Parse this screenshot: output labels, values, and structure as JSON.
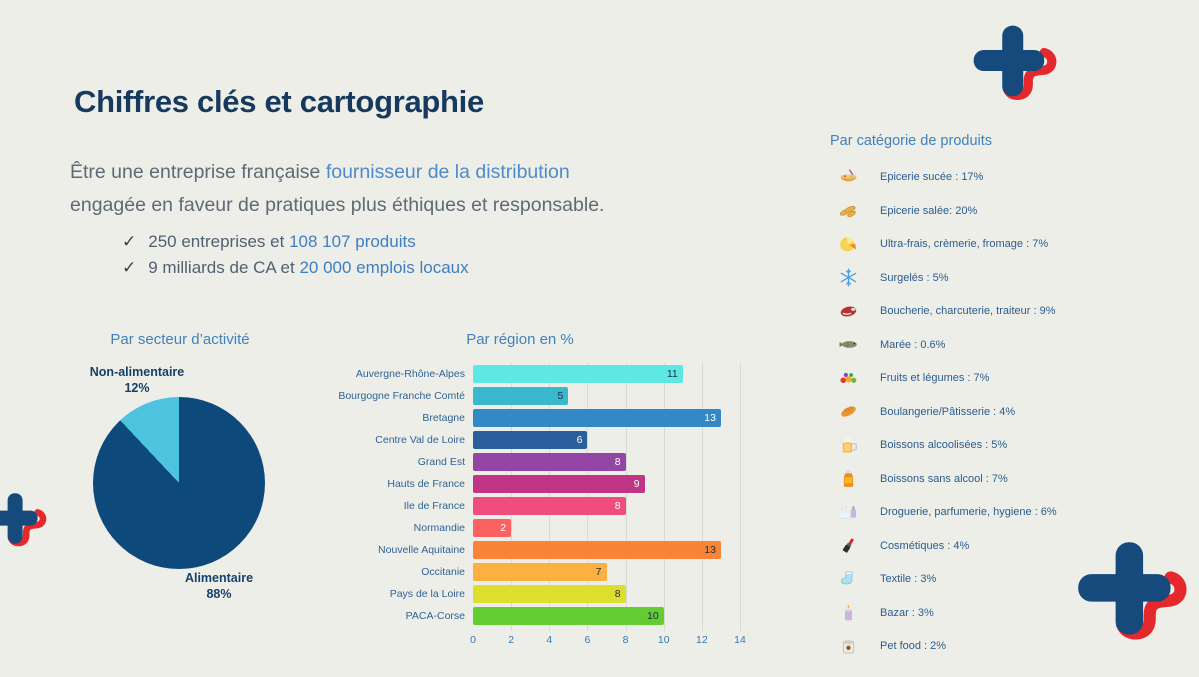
{
  "slide": {
    "title": "Chiffres clés et cartographie",
    "intro": {
      "line1_plain": "Être une entreprise française ",
      "line1_highlight": "fournisseur de la distribution",
      "line2": "engagée en faveur de pratiques plus éthiques et responsable."
    },
    "checkmark": "✓",
    "bullets": [
      {
        "plain": "250 entreprises et ",
        "highlight": "108 107 produits"
      },
      {
        "plain": "9 milliards de CA et ",
        "highlight": "20 000 emplois locaux"
      }
    ]
  },
  "colors": {
    "background": "#edeee8",
    "title_navy": "#16395e",
    "body_gray": "#5e6a74",
    "accent_blue": "#4e8bcc",
    "chart_title_blue": "#4181bd",
    "label_blue": "#2f6396",
    "pie_navy": "#0d4a7b",
    "pie_cyan": "#4ec3e0",
    "logo_navy": "#164a7d",
    "logo_red": "#e5282b",
    "gridline": "#d8d9d2"
  },
  "chart_data": [
    {
      "type": "pie",
      "title": "Par secteur d’activité",
      "slices": [
        {
          "label": "Non-alimentaire",
          "value": 12,
          "pct_label": "12%",
          "color": "#4ec3e0"
        },
        {
          "label": "Alimentaire",
          "value": 88,
          "pct_label": "88%",
          "color": "#0d4a7b"
        }
      ]
    },
    {
      "type": "bar",
      "orientation": "horizontal",
      "title": "Par région en %",
      "xlim": [
        0,
        14
      ],
      "ticks": [
        0,
        2,
        4,
        6,
        8,
        10,
        12,
        14
      ],
      "grid": true,
      "rows": [
        {
          "label": "Auvergne-Rhône-Alpes",
          "value": 11,
          "color": "#5ee8e3",
          "value_color": "dark"
        },
        {
          "label": "Bourgogne Franche Comté",
          "value": 5,
          "color": "#38b9d0",
          "value_color": "dark"
        },
        {
          "label": "Bretagne",
          "value": 13,
          "color": "#3389c5",
          "value_color": "light"
        },
        {
          "label": "Centre Val de Loire",
          "value": 6,
          "color": "#2a5f9e",
          "value_color": "light"
        },
        {
          "label": "Grand Est",
          "value": 8,
          "color": "#9346a3",
          "value_color": "light"
        },
        {
          "label": "Hauts de France",
          "value": 9,
          "color": "#c13585",
          "value_color": "light"
        },
        {
          "label": "Ile de France",
          "value": 8,
          "color": "#f04d7e",
          "value_color": "light"
        },
        {
          "label": "Normandie",
          "value": 2,
          "color": "#fc6161",
          "value_color": "light"
        },
        {
          "label": "Nouvelle Aquitaine",
          "value": 13,
          "color": "#f88438",
          "value_color": "dark"
        },
        {
          "label": "Occitanie",
          "value": 7,
          "color": "#fbb03f",
          "value_color": "dark"
        },
        {
          "label": "Pays de la Loire",
          "value": 8,
          "color": "#ddde2d",
          "value_color": "dark"
        },
        {
          "label": "PACA-Corse",
          "value": 10,
          "color": "#64cc33",
          "value_color": "dark"
        }
      ]
    }
  ],
  "categories": {
    "title": "Par catégorie de produits",
    "items": [
      {
        "icon": "sweets-bowl",
        "label": "Epicerie sucée : 17%"
      },
      {
        "icon": "pasta",
        "label": "Epicerie salée: 20%"
      },
      {
        "icon": "cheese",
        "label": "Ultra-frais, crèmerie, fromage : 7%"
      },
      {
        "icon": "snowflake",
        "label": "Surgelés : 5%"
      },
      {
        "icon": "meat",
        "label": "Boucherie, charcuterie, traiteur : 9%"
      },
      {
        "icon": "fish",
        "label": "Marée : 0.6%"
      },
      {
        "icon": "fruits-vegetables",
        "label": "Fruits et légumes : 7%"
      },
      {
        "icon": "bread",
        "label": "Boulangerie/Pâtisserie : 4%"
      },
      {
        "icon": "beer-mug",
        "label": "Boissons alcoolisées : 5%"
      },
      {
        "icon": "juice-bottle",
        "label": "Boissons sans alcool : 7%"
      },
      {
        "icon": "soap-perfume",
        "label": "Droguerie, parfumerie, hygiene : 6%"
      },
      {
        "icon": "lipstick",
        "label": "Cosmétiques : 4%"
      },
      {
        "icon": "sock",
        "label": "Textile  : 3%"
      },
      {
        "icon": "candle",
        "label": "Bazar : 3%"
      },
      {
        "icon": "pet-food-can",
        "label": "Pet food : 2%"
      }
    ]
  }
}
